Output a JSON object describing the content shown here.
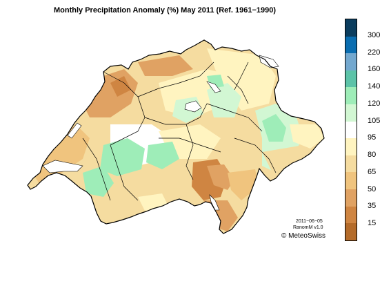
{
  "title": "Monthly Precipitation Anomaly (%) May 2011  (Ref. 1961−1990)",
  "legend": {
    "labels": [
      "300",
      "220",
      "160",
      "140",
      "120",
      "105",
      "95",
      "80",
      "65",
      "50",
      "35",
      "15"
    ],
    "colors_top_to_bottom": [
      "#0b3d5e",
      "#0a6db0",
      "#73a8cf",
      "#5cc3a8",
      "#9eedb8",
      "#d2f7d3",
      "#ffffff",
      "#fff4c0",
      "#f5dca0",
      "#f0c47e",
      "#e0a263",
      "#cf8542",
      "#b46b2a"
    ]
  },
  "credits": {
    "date": "2011−06−05",
    "product": "RanomM v1.0",
    "copyright": "© MeteoSwiss"
  },
  "colors": {
    "border": "#000000",
    "lakes": "#ffffff"
  }
}
